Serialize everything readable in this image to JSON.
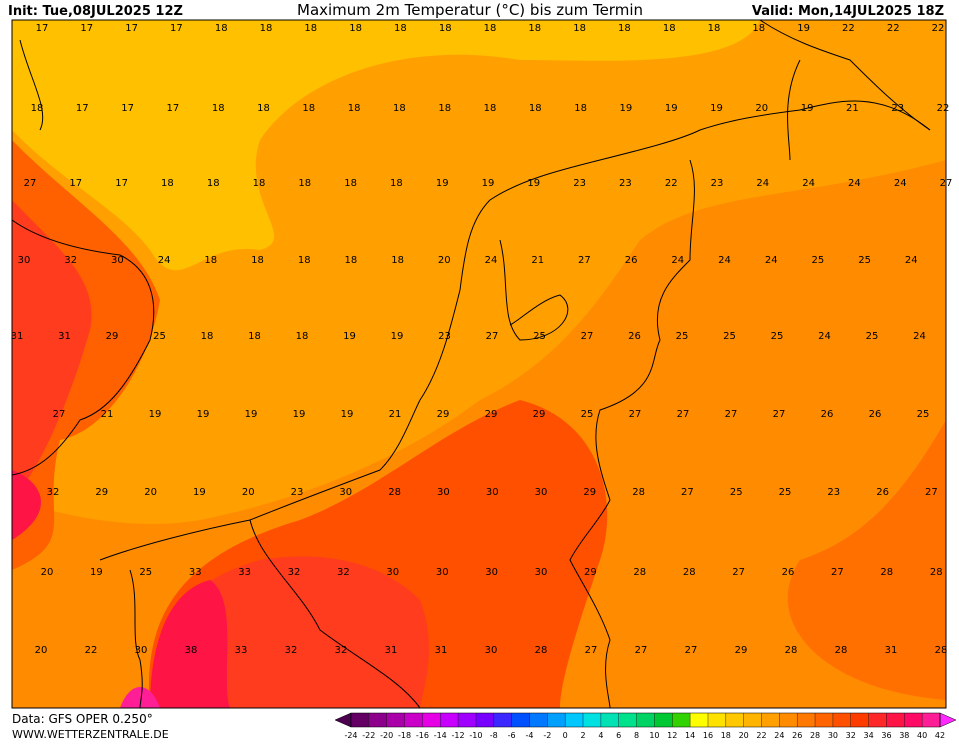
{
  "header": {
    "init": "Init: Tue,08JUL2025 12Z",
    "title": "Maximum 2m Temperatur (°C) bis zum Termin",
    "valid": "Valid: Mon,14JUL2025 18Z"
  },
  "map": {
    "grid_values": [
      [
        17,
        17,
        17,
        17,
        18,
        18,
        18,
        18,
        18,
        18,
        18,
        18,
        18,
        18,
        18,
        18,
        18,
        19,
        22,
        22,
        22
      ],
      [
        18,
        17,
        17,
        17,
        18,
        18,
        18,
        18,
        18,
        18,
        18,
        18,
        18,
        19,
        19,
        19,
        20,
        19,
        21,
        23,
        22
      ],
      [
        27,
        17,
        17,
        18,
        18,
        18,
        18,
        18,
        18,
        19,
        19,
        19,
        23,
        23,
        22,
        23,
        24,
        24,
        24,
        24,
        27
      ],
      [
        30,
        32,
        30,
        24,
        18,
        18,
        18,
        18,
        18,
        20,
        24,
        21,
        27,
        26,
        24,
        24,
        24,
        25,
        25,
        24
      ],
      [
        31,
        31,
        29,
        25,
        18,
        18,
        18,
        19,
        19,
        23,
        27,
        25,
        27,
        26,
        25,
        25,
        25,
        24,
        25,
        24
      ],
      [
        27,
        21,
        19,
        19,
        19,
        19,
        19,
        21,
        29,
        29,
        29,
        25,
        27,
        27,
        27,
        27,
        26,
        26,
        25
      ],
      [
        32,
        29,
        20,
        19,
        20,
        23,
        30,
        28,
        30,
        30,
        30,
        29,
        28,
        27,
        25,
        25,
        23,
        26,
        27
      ],
      [
        20,
        19,
        25,
        33,
        33,
        32,
        32,
        30,
        30,
        30,
        30,
        29,
        28,
        28,
        27,
        26,
        27,
        28,
        28
      ],
      [
        20,
        22,
        30,
        38,
        33,
        32,
        32,
        31,
        31,
        30,
        28,
        27,
        27,
        27,
        29,
        28,
        28,
        31,
        28
      ]
    ]
  },
  "colorbar": {
    "labels": [
      -24,
      -22,
      -20,
      -18,
      -16,
      -14,
      -12,
      -10,
      -8,
      -6,
      -4,
      -2,
      0,
      2,
      4,
      6,
      8,
      10,
      12,
      14,
      16,
      18,
      20,
      22,
      24,
      26,
      28,
      30,
      32,
      34,
      36,
      38,
      40,
      42
    ],
    "colors": [
      "#4b0050",
      "#640064",
      "#8c008c",
      "#aa00aa",
      "#c800c8",
      "#e600e6",
      "#c800ff",
      "#a000ff",
      "#7800ff",
      "#3c28ff",
      "#0050ff",
      "#0078ff",
      "#00a0ff",
      "#00c8ff",
      "#00e1e1",
      "#00e1b4",
      "#00e18c",
      "#00d264",
      "#00c832",
      "#32d200",
      "#ffff00",
      "#ffe100",
      "#ffc800",
      "#ffb400",
      "#ffa000",
      "#ff8c00",
      "#ff7800",
      "#ff6400",
      "#ff5000",
      "#ff3c00",
      "#ff2828",
      "#ff1446",
      "#ff0a64",
      "#ff1e96",
      "#ff28c8",
      "#ff28ff"
    ]
  },
  "footer": {
    "data": "Data: GFS OPER 0.250°",
    "site": "WWW.WETTERZENTRALE.DE"
  }
}
